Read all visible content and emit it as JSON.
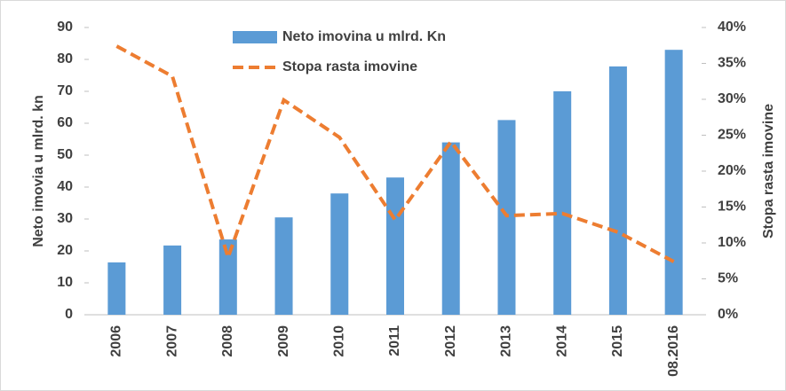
{
  "chart_data": {
    "type": "bar_line",
    "categories": [
      "2006",
      "2007",
      "2008",
      "2009",
      "2010",
      "2011",
      "2012",
      "2013",
      "2014",
      "2015",
      "08.2016"
    ],
    "series": [
      {
        "name": "Neto imovina u mlrd. Kn",
        "color": "#5b9bd5",
        "type": "bar",
        "values": [
          16.4,
          21.7,
          23.6,
          30.5,
          38,
          43,
          54,
          61,
          70,
          77.8,
          83
        ]
      },
      {
        "name": "Stopa rasta imovine",
        "color": "#ed7d31",
        "type": "line",
        "axis": "y2",
        "values": [
          37.4,
          33.2,
          8,
          29.9,
          24.7,
          13.2,
          24.1,
          13.8,
          14.1,
          11.5,
          7.4
        ]
      }
    ],
    "ylabel": "Neto imovia u mlrd. kn",
    "y2label": "Stopa rasta imovine",
    "ylim": [
      0,
      90
    ],
    "yticks": [
      0,
      10,
      20,
      30,
      40,
      50,
      60,
      70,
      80,
      90
    ],
    "y2lim": [
      0,
      40
    ],
    "y2ticks": [
      {
        "value": 0,
        "label": "0%"
      },
      {
        "value": 5,
        "label": "5%"
      },
      {
        "value": 10,
        "label": "10%"
      },
      {
        "value": 15,
        "label": "15%"
      },
      {
        "value": 20,
        "label": "20%"
      },
      {
        "value": 25,
        "label": "25%"
      },
      {
        "value": 30,
        "label": "30%"
      },
      {
        "value": 35,
        "label": "35%"
      },
      {
        "value": 40,
        "label": "40%"
      }
    ],
    "legend": "top",
    "grid": false
  }
}
